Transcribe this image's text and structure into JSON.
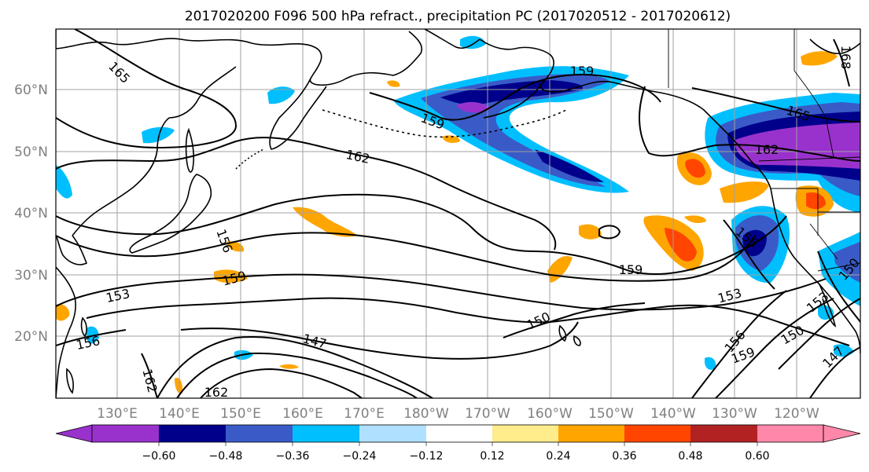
{
  "title": "2017020200 F096 500 hPa refract., precipitation PC (2017020512 - 2017020612)",
  "lat_labels": [
    "60°N",
    "50°N",
    "40°N",
    "30°N",
    "20°N"
  ],
  "lon_labels": [
    "130°E",
    "140°E",
    "150°E",
    "160°E",
    "170°E",
    "180°W",
    "170°W",
    "160°W",
    "150°W",
    "140°W",
    "130°W",
    "120°W"
  ],
  "colorbar": {
    "tick_labels": [
      "−0.60",
      "−0.48",
      "−0.36",
      "−0.24",
      "−0.12",
      "0.12",
      "0.24",
      "0.36",
      "0.48",
      "0.60"
    ],
    "colors": [
      "#9932CC",
      "#00008B",
      "#3A5BC7",
      "#00BFFF",
      "#B0E0FF",
      "#FFFFFF",
      "#FFEC8B",
      "#FFA500",
      "#FF4500",
      "#B22222",
      "#FF88AA"
    ]
  },
  "contour_labels": [
    "165",
    "159",
    "159",
    "162",
    "165",
    "162",
    "156",
    "156",
    "159",
    "153",
    "159",
    "153",
    "150",
    "156",
    "147",
    "162",
    "150",
    "156",
    "159",
    "150",
    "153",
    "147",
    "162",
    "168"
  ]
}
